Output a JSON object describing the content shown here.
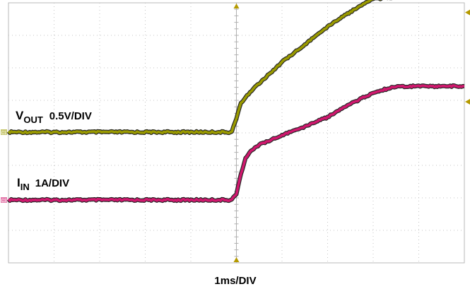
{
  "chart_data": {
    "type": "line",
    "title": "",
    "xlabel": "1ms/DIV",
    "grid": true,
    "x_unit": "ms",
    "xlim": [
      -5,
      5
    ],
    "trigger_time_ms": 0,
    "series": [
      {
        "name": "VOUT",
        "label_main": "V",
        "label_sub": "OUT",
        "label_scale": "0.5V/DIV",
        "channel_marker": "C1",
        "color": "#9a9a00",
        "scale_per_div": 0.5,
        "unit": "V",
        "x": [
          -5,
          -0.1,
          0,
          0.1,
          0.3,
          0.5,
          1,
          1.5,
          2,
          2.5,
          3,
          3.5,
          4,
          4.5,
          5
        ],
        "y": [
          0,
          0,
          0.22,
          0.45,
          0.62,
          0.75,
          1.08,
          1.35,
          1.62,
          1.85,
          2.05,
          2.08,
          2.08,
          2.08,
          2.08
        ]
      },
      {
        "name": "IIN",
        "label_main": "I",
        "label_sub": "IN",
        "label_scale": "1A/DIV",
        "channel_marker": "C3",
        "color": "#d0186e",
        "scale_per_div": 1,
        "unit": "A",
        "x": [
          -5,
          -0.1,
          0,
          0.1,
          0.2,
          0.35,
          0.5,
          1,
          1.5,
          2,
          2.5,
          3,
          3.5,
          4,
          4.5,
          5
        ],
        "y": [
          0,
          0,
          0.2,
          0.8,
          1.3,
          1.55,
          1.7,
          2.0,
          2.25,
          2.55,
          2.95,
          3.3,
          3.5,
          3.5,
          3.5,
          3.5
        ]
      }
    ]
  }
}
